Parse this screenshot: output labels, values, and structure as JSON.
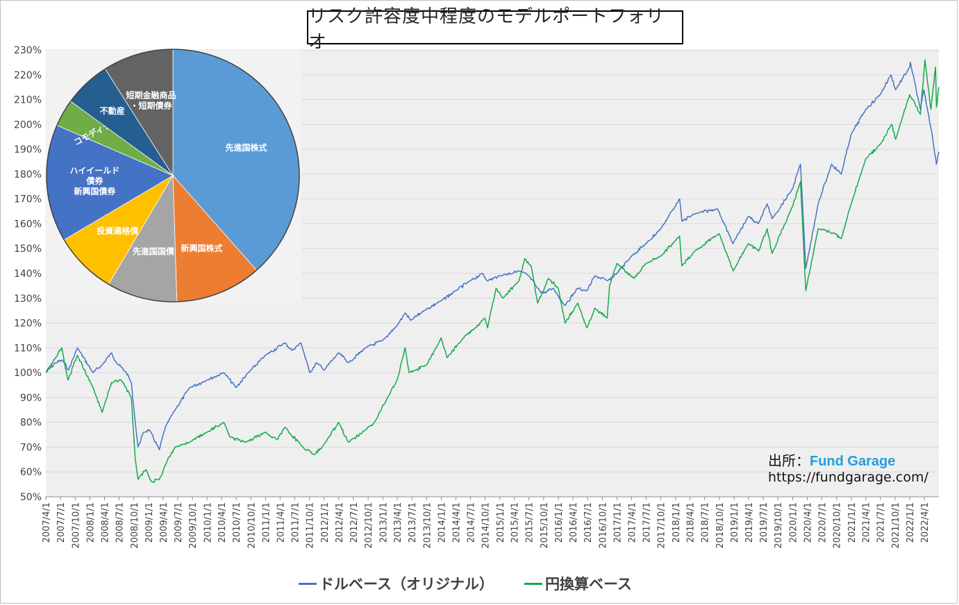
{
  "title": "リスク許容度中程度のモデルポートフォリオ",
  "source": {
    "label": "出所：",
    "brand": "Fund Garage",
    "url": "https://fundgarage.com/"
  },
  "colors": {
    "dollar": "#4472c4",
    "yen": "#13a94a",
    "plot_bg": "#efefef",
    "grid": "#d9d9d9"
  },
  "chart_data": [
    {
      "type": "line",
      "yticks": [
        "50%",
        "60%",
        "70%",
        "80%",
        "90%",
        "100%",
        "110%",
        "120%",
        "130%",
        "140%",
        "150%",
        "160%",
        "170%",
        "180%",
        "190%",
        "200%",
        "210%",
        "220%",
        "230%"
      ],
      "ylim": [
        50,
        230
      ],
      "xlim": [
        "2007/4/1",
        "2022/7/1"
      ],
      "xticks": [
        "2007/4/1",
        "2007/7/1",
        "2007/10/1",
        "2008/1/1",
        "2008/4/1",
        "2008/7/1",
        "2008/10/1",
        "2009/1/1",
        "2009/4/1",
        "2009/7/1",
        "2009/10/1",
        "2010/1/1",
        "2010/4/1",
        "2010/7/1",
        "2010/10/1",
        "2011/1/1",
        "2011/4/1",
        "2011/7/1",
        "2011/10/1",
        "2012/1/1",
        "2012/4/1",
        "2012/7/1",
        "2012/10/1",
        "2013/1/1",
        "2013/4/1",
        "2013/7/1",
        "2013/10/1",
        "2014/1/1",
        "2014/4/1",
        "2014/7/1",
        "2014/10/1",
        "2015/1/1",
        "2015/4/1",
        "2015/7/1",
        "2015/10/1",
        "2016/1/1",
        "2016/4/1",
        "2016/7/1",
        "2016/10/1",
        "2017/1/1",
        "2017/4/1",
        "2017/7/1",
        "2017/10/1",
        "2018/1/1",
        "2018/4/1",
        "2018/7/1",
        "2018/10/1",
        "2019/1/1",
        "2019/4/1",
        "2019/7/1",
        "2019/10/1",
        "2020/1/1",
        "2020/4/1",
        "2020/7/1",
        "2020/10/1",
        "2021/1/1",
        "2021/4/1",
        "2021/7/1",
        "2021/10/1",
        "2022/1/1",
        "2022/4/1"
      ],
      "series": [
        {
          "name": "ドルベース（オリジナル）",
          "points": [
            [
              "2007/4/1",
              100
            ],
            [
              "2007/6/1",
              104
            ],
            [
              "2007/7/15",
              105
            ],
            [
              "2007/8/20",
              101
            ],
            [
              "2007/10/15",
              110
            ],
            [
              "2008/1/20",
              100
            ],
            [
              "2008/3/15",
              103
            ],
            [
              "2008/5/15",
              108
            ],
            [
              "2008/6/15",
              104
            ],
            [
              "2008/8/15",
              100
            ],
            [
              "2008/9/15",
              96
            ],
            [
              "2008/10/10",
              80
            ],
            [
              "2008/10/27",
              70
            ],
            [
              "2008/12/1",
              76
            ],
            [
              "2009/1/5",
              77
            ],
            [
              "2009/3/9",
              69
            ],
            [
              "2009/4/15",
              78
            ],
            [
              "2009/6/15",
              85
            ],
            [
              "2009/9/15",
              94
            ],
            [
              "2009/12/31",
              97
            ],
            [
              "2010/4/15",
              100
            ],
            [
              "2010/7/1",
              94
            ],
            [
              "2010/9/15",
              100
            ],
            [
              "2010/12/31",
              107
            ],
            [
              "2011/4/30",
              112
            ],
            [
              "2011/6/15",
              109
            ],
            [
              "2011/8/10",
              112
            ],
            [
              "2011/10/3",
              100
            ],
            [
              "2011/11/15",
              104
            ],
            [
              "2011/12/31",
              101
            ],
            [
              "2012/3/31",
              108
            ],
            [
              "2012/6/1",
              104
            ],
            [
              "2012/9/15",
              110
            ],
            [
              "2012/12/31",
              113
            ],
            [
              "2013/4/1",
              119
            ],
            [
              "2013/5/20",
              124
            ],
            [
              "2013/6/24",
              121
            ],
            [
              "2013/9/15",
              125
            ],
            [
              "2013/12/31",
              129
            ],
            [
              "2014/4/1",
              133
            ],
            [
              "2014/6/30",
              137
            ],
            [
              "2014/9/15",
              140
            ],
            [
              "2014/10/15",
              137
            ],
            [
              "2014/12/31",
              139
            ],
            [
              "2015/4/30",
              141
            ],
            [
              "2015/6/30",
              139
            ],
            [
              "2015/8/24",
              134
            ],
            [
              "2015/9/29",
              132
            ],
            [
              "2015/11/30",
              134
            ],
            [
              "2016/2/11",
              127
            ],
            [
              "2016/4/30",
              134
            ],
            [
              "2016/6/27",
              133
            ],
            [
              "2016/8/15",
              139
            ],
            [
              "2016/11/4",
              137
            ],
            [
              "2016/12/31",
              140
            ],
            [
              "2017/4/1",
              147
            ],
            [
              "2017/7/1",
              152
            ],
            [
              "2017/10/1",
              158
            ],
            [
              "2018/1/26",
              170
            ],
            [
              "2018/2/9",
              161
            ],
            [
              "2018/5/1",
              164
            ],
            [
              "2018/9/20",
              166
            ],
            [
              "2018/12/24",
              152
            ],
            [
              "2019/3/31",
              163
            ],
            [
              "2019/5/31",
              160
            ],
            [
              "2019/7/26",
              168
            ],
            [
              "2019/8/26",
              162
            ],
            [
              "2019/12/31",
              174
            ],
            [
              "2020/2/19",
              184
            ],
            [
              "2020/3/23",
              142
            ],
            [
              "2020/6/8",
              168
            ],
            [
              "2020/8/31",
              184
            ],
            [
              "2020/10/30",
              180
            ],
            [
              "2020/12/31",
              196
            ],
            [
              "2021/4/1",
              206
            ],
            [
              "2021/6/30",
              212
            ],
            [
              "2021/9/5",
              220
            ],
            [
              "2021/10/4",
              214
            ],
            [
              "2021/12/31",
              223
            ],
            [
              "2022/1/4",
              225
            ],
            [
              "2022/3/8",
              206
            ],
            [
              "2022/3/29",
              214
            ],
            [
              "2022/5/20",
              196
            ],
            [
              "2022/6/16",
              184
            ],
            [
              "2022/7/1",
              189
            ]
          ]
        },
        {
          "name": "円換算ベース",
          "points": [
            [
              "2007/4/1",
              100
            ],
            [
              "2007/5/31",
              106
            ],
            [
              "2007/7/10",
              110
            ],
            [
              "2007/8/17",
              97
            ],
            [
              "2007/10/15",
              107
            ],
            [
              "2008/1/20",
              94
            ],
            [
              "2008/3/17",
              84
            ],
            [
              "2008/5/15",
              96
            ],
            [
              "2008/7/15",
              97
            ],
            [
              "2008/9/15",
              90
            ],
            [
              "2008/10/10",
              65
            ],
            [
              "2008/10/27",
              57
            ],
            [
              "2008/12/15",
              61
            ],
            [
              "2009/1/20",
              56
            ],
            [
              "2009/3/9",
              57
            ],
            [
              "2009/4/30",
              65
            ],
            [
              "2009/6/15",
              70
            ],
            [
              "2009/9/15",
              72
            ],
            [
              "2009/12/31",
              76
            ],
            [
              "2010/4/15",
              80
            ],
            [
              "2010/5/25",
              74
            ],
            [
              "2010/8/31",
              72
            ],
            [
              "2010/12/31",
              76
            ],
            [
              "2011/3/15",
              73
            ],
            [
              "2011/5/1",
              78
            ],
            [
              "2011/8/20",
              70
            ],
            [
              "2011/10/31",
              67
            ],
            [
              "2011/12/31",
              71
            ],
            [
              "2012/3/31",
              80
            ],
            [
              "2012/6/1",
              72
            ],
            [
              "2012/9/15",
              77
            ],
            [
              "2012/10/31",
              79
            ],
            [
              "2013/1/31",
              90
            ],
            [
              "2013/3/31",
              97
            ],
            [
              "2013/5/20",
              110
            ],
            [
              "2013/6/14",
              100
            ],
            [
              "2013/9/30",
              103
            ],
            [
              "2013/12/31",
              114
            ],
            [
              "2014/2/5",
              106
            ],
            [
              "2014/5/31",
              115
            ],
            [
              "2014/7/31",
              118
            ],
            [
              "2014/9/30",
              122
            ],
            [
              "2014/10/16",
              118
            ],
            [
              "2014/12/8",
              134
            ],
            [
              "2015/1/20",
              130
            ],
            [
              "2015/4/30",
              137
            ],
            [
              "2015/6/5",
              146
            ],
            [
              "2015/7/15",
              143
            ],
            [
              "2015/8/25",
              128
            ],
            [
              "2015/10/31",
              138
            ],
            [
              "2015/12/31",
              134
            ],
            [
              "2016/2/12",
              120
            ],
            [
              "2016/4/30",
              128
            ],
            [
              "2016/6/27",
              118
            ],
            [
              "2016/8/15",
              126
            ],
            [
              "2016/10/31",
              122
            ],
            [
              "2016/11/15",
              135
            ],
            [
              "2016/12/31",
              144
            ],
            [
              "2017/4/17",
              138
            ],
            [
              "2017/7/1",
              144
            ],
            [
              "2017/10/1",
              147
            ],
            [
              "2018/1/26",
              155
            ],
            [
              "2018/2/9",
              143
            ],
            [
              "2018/5/1",
              149
            ],
            [
              "2018/9/30",
              156
            ],
            [
              "2018/12/26",
              141
            ],
            [
              "2019/3/31",
              152
            ],
            [
              "2019/6/3",
              149
            ],
            [
              "2019/7/26",
              158
            ],
            [
              "2019/8/26",
              148
            ],
            [
              "2019/12/31",
              167
            ],
            [
              "2020/2/19",
              177
            ],
            [
              "2020/3/23",
              133
            ],
            [
              "2020/6/8",
              158
            ],
            [
              "2020/9/23",
              156
            ],
            [
              "2020/10/30",
              154
            ],
            [
              "2020/12/31",
              168
            ],
            [
              "2021/3/31",
              186
            ],
            [
              "2021/6/30",
              192
            ],
            [
              "2021/9/10",
              200
            ],
            [
              "2021/10/4",
              194
            ],
            [
              "2021/12/31",
              212
            ],
            [
              "2022/1/20",
              210
            ],
            [
              "2022/3/8",
              204
            ],
            [
              "2022/4/5",
              226
            ],
            [
              "2022/5/12",
              206
            ],
            [
              "2022/6/10",
              223
            ],
            [
              "2022/6/16",
              207
            ],
            [
              "2022/7/1",
              215
            ]
          ]
        }
      ]
    },
    {
      "type": "pie",
      "slices": [
        {
          "label": "先進国株式",
          "value": 38.5,
          "color": "#5b9bd5"
        },
        {
          "label": "新興国株式",
          "value": 11,
          "color": "#ed7d31"
        },
        {
          "label": "先進国国債",
          "value": 9,
          "color": "#a5a5a5"
        },
        {
          "label": "投資適格債",
          "value": 8,
          "color": "#ffc000"
        },
        {
          "label": "ハイイールド債券 新興国債券",
          "value": 15,
          "color": "#4472c4",
          "lines": [
            "ハイイールド",
            "債券",
            "新興国債券"
          ]
        },
        {
          "label": "コモディティ",
          "value": 3.5,
          "color": "#70ad47"
        },
        {
          "label": "不動産",
          "value": 6,
          "color": "#255e91"
        },
        {
          "label": "短期金融商品・短期債券",
          "value": 9,
          "color": "#636363",
          "lines": [
            "短期金融商品",
            "・短期債券"
          ]
        }
      ]
    }
  ]
}
